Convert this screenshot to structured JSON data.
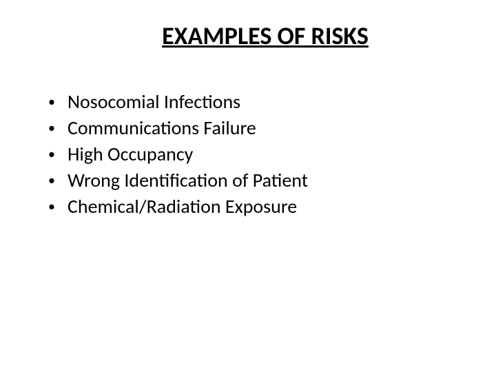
{
  "title": "EXAMPLES OF RISKS",
  "bullets": {
    "item0": "Nosocomial Infections",
    "item1": "Communications Failure",
    "item2": "High Occupancy",
    "item3": "Wrong Identification of Patient",
    "item4": "Chemical/Radiation Exposure"
  },
  "colors": {
    "background": "#ffffff",
    "text": "#000000"
  },
  "typography": {
    "title_fontsize": 36,
    "bullet_fontsize": 28,
    "font_family": "Calibri"
  }
}
